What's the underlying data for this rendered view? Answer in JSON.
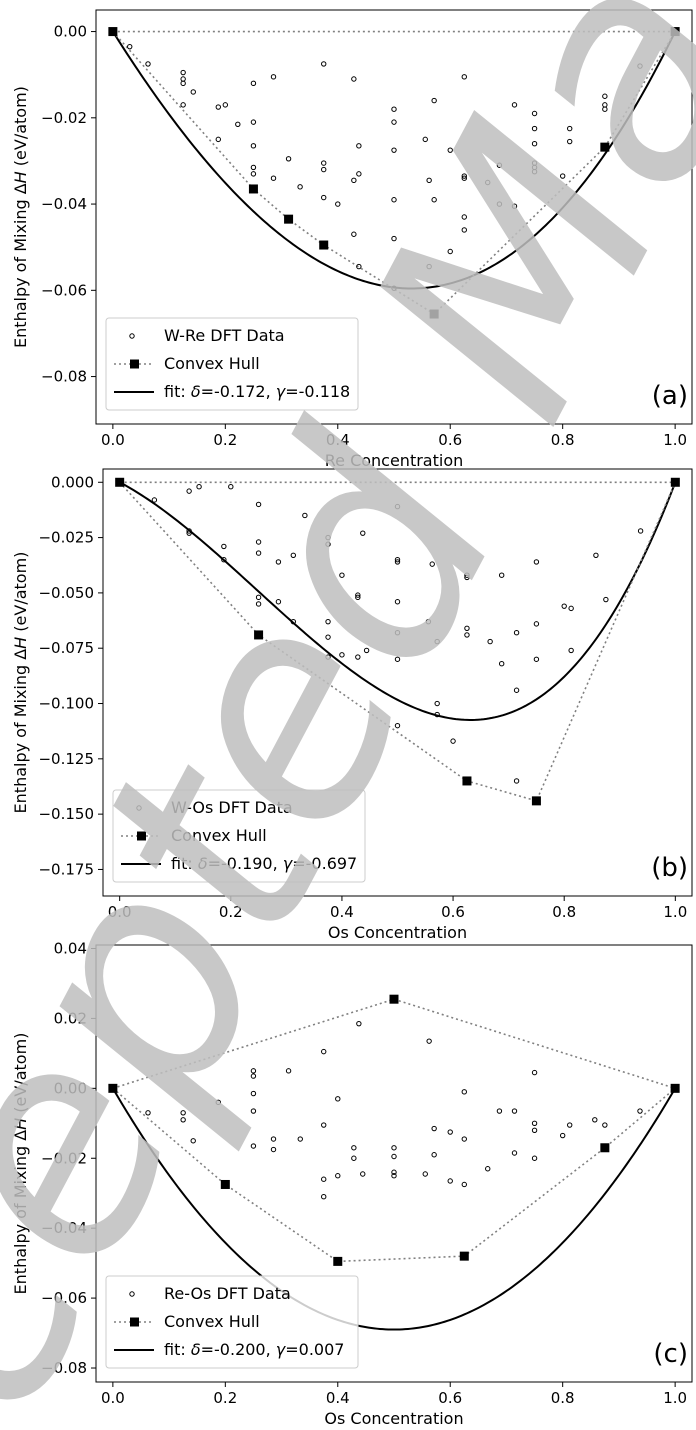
{
  "colors": {
    "hull": "#808080",
    "fit": "#000000",
    "points": "#000000",
    "watermark": "#bfbfbf"
  },
  "chart_data": [
    {
      "type": "scatter",
      "panel_label": "(a)",
      "xlabel": "Re Concentration",
      "ylabel": "Enthalpy of Mixing ΔH (eV/atom)",
      "xlim": [
        -0.03,
        1.03
      ],
      "ylim": [
        -0.091,
        0.005
      ],
      "xticks": [
        0.0,
        0.2,
        0.4,
        0.6,
        0.8,
        1.0
      ],
      "xtick_labels": [
        "0.0",
        "0.2",
        "0.4",
        "0.6",
        "0.8",
        "1.0"
      ],
      "yticks": [
        0.0,
        -0.02,
        -0.04,
        -0.06,
        -0.08
      ],
      "ytick_labels": [
        "0.00",
        "−0.02",
        "−0.04",
        "−0.06",
        "−0.08"
      ],
      "legend": [
        "W-Re DFT Data",
        "Convex Hull",
        "fit: δ=-0.172, γ=-0.118"
      ],
      "legend_position": "lower-left",
      "fit": {
        "delta": -0.172,
        "gamma": -0.118
      },
      "hull": [
        [
          0.0,
          0.0
        ],
        [
          0.25,
          -0.0365
        ],
        [
          0.3125,
          -0.0435
        ],
        [
          0.375,
          -0.0495
        ],
        [
          0.5714,
          -0.0655
        ],
        [
          0.875,
          -0.0268
        ],
        [
          1.0,
          0.0
        ]
      ],
      "dft": [
        [
          0.03,
          -0.0035
        ],
        [
          0.0625,
          -0.0075
        ],
        [
          0.125,
          -0.0095
        ],
        [
          0.125,
          -0.011
        ],
        [
          0.125,
          -0.012
        ],
        [
          0.125,
          -0.017
        ],
        [
          0.143,
          -0.014
        ],
        [
          0.1875,
          -0.0175
        ],
        [
          0.2,
          -0.017
        ],
        [
          0.1875,
          -0.025
        ],
        [
          0.25,
          -0.012
        ],
        [
          0.25,
          -0.021
        ],
        [
          0.25,
          -0.0265
        ],
        [
          0.25,
          -0.0315
        ],
        [
          0.25,
          -0.033
        ],
        [
          0.2222,
          -0.0215
        ],
        [
          0.2857,
          -0.0105
        ],
        [
          0.3125,
          -0.0295
        ],
        [
          0.2857,
          -0.034
        ],
        [
          0.333,
          -0.036
        ],
        [
          0.375,
          -0.0075
        ],
        [
          0.375,
          -0.0305
        ],
        [
          0.375,
          -0.032
        ],
        [
          0.375,
          -0.0385
        ],
        [
          0.4,
          -0.04
        ],
        [
          0.4286,
          -0.011
        ],
        [
          0.4375,
          -0.0265
        ],
        [
          0.4286,
          -0.0345
        ],
        [
          0.4375,
          -0.033
        ],
        [
          0.4286,
          -0.047
        ],
        [
          0.4375,
          -0.0545
        ],
        [
          0.5,
          -0.018
        ],
        [
          0.5,
          -0.021
        ],
        [
          0.5,
          -0.0275
        ],
        [
          0.5,
          -0.039
        ],
        [
          0.5,
          -0.048
        ],
        [
          0.5,
          -0.0595
        ],
        [
          0.5556,
          -0.025
        ],
        [
          0.5714,
          -0.016
        ],
        [
          0.5625,
          -0.0345
        ],
        [
          0.5714,
          -0.039
        ],
        [
          0.5625,
          -0.0545
        ],
        [
          0.6,
          -0.0275
        ],
        [
          0.625,
          -0.0105
        ],
        [
          0.625,
          -0.0335
        ],
        [
          0.625,
          -0.034
        ],
        [
          0.625,
          -0.043
        ],
        [
          0.625,
          -0.046
        ],
        [
          0.6,
          -0.051
        ],
        [
          0.6667,
          -0.035
        ],
        [
          0.6875,
          -0.031
        ],
        [
          0.6875,
          -0.04
        ],
        [
          0.7143,
          -0.017
        ],
        [
          0.7143,
          -0.0405
        ],
        [
          0.75,
          -0.019
        ],
        [
          0.75,
          -0.0225
        ],
        [
          0.75,
          -0.026
        ],
        [
          0.75,
          -0.0305
        ],
        [
          0.75,
          -0.0315
        ],
        [
          0.75,
          -0.0325
        ],
        [
          0.8,
          -0.0335
        ],
        [
          0.8125,
          -0.0225
        ],
        [
          0.8125,
          -0.0255
        ],
        [
          0.875,
          -0.015
        ],
        [
          0.875,
          -0.017
        ],
        [
          0.875,
          -0.018
        ],
        [
          0.9375,
          -0.008
        ]
      ]
    },
    {
      "type": "scatter",
      "panel_label": "(b)",
      "xlabel": "Os Concentration",
      "ylabel": "Enthalpy of Mixing ΔH (eV/atom)",
      "xlim": [
        -0.03,
        1.03
      ],
      "ylim": [
        -0.187,
        0.006
      ],
      "xticks": [
        0.0,
        0.2,
        0.4,
        0.6,
        0.8,
        1.0
      ],
      "xtick_labels": [
        "0.0",
        "0.2",
        "0.4",
        "0.6",
        "0.8",
        "1.0"
      ],
      "yticks": [
        0.0,
        -0.025,
        -0.05,
        -0.075,
        -0.1,
        -0.125,
        -0.15,
        -0.175
      ],
      "ytick_labels": [
        "0.000",
        "−0.025",
        "−0.050",
        "−0.075",
        "−0.100",
        "−0.125",
        "−0.150",
        "−0.175"
      ],
      "legend": [
        "W-Os DFT Data",
        "Convex Hull",
        "fit: δ=-0.190, γ=-0.697"
      ],
      "legend_position": "lower-left",
      "fit": {
        "delta": -0.19,
        "gamma": -0.697
      },
      "hull": [
        [
          0.0,
          0.0
        ],
        [
          0.25,
          -0.069
        ],
        [
          0.625,
          -0.135
        ],
        [
          0.75,
          -0.144
        ],
        [
          1.0,
          0.0
        ]
      ],
      "dft": [
        [
          0.0625,
          -0.008
        ],
        [
          0.125,
          -0.004
        ],
        [
          0.1429,
          -0.002
        ],
        [
          0.125,
          -0.022
        ],
        [
          0.125,
          -0.023
        ],
        [
          0.1875,
          -0.029
        ],
        [
          0.1875,
          -0.035
        ],
        [
          0.2,
          -0.002
        ],
        [
          0.25,
          -0.01
        ],
        [
          0.25,
          -0.027
        ],
        [
          0.25,
          -0.032
        ],
        [
          0.25,
          -0.052
        ],
        [
          0.25,
          -0.055
        ],
        [
          0.2857,
          -0.036
        ],
        [
          0.2857,
          -0.054
        ],
        [
          0.3125,
          -0.033
        ],
        [
          0.3125,
          -0.063
        ],
        [
          0.3333,
          -0.015
        ],
        [
          0.375,
          -0.025
        ],
        [
          0.375,
          -0.028
        ],
        [
          0.375,
          -0.063
        ],
        [
          0.375,
          -0.07
        ],
        [
          0.375,
          -0.079
        ],
        [
          0.4,
          -0.042
        ],
        [
          0.4,
          -0.078
        ],
        [
          0.4286,
          -0.051
        ],
        [
          0.4286,
          -0.052
        ],
        [
          0.4286,
          -0.079
        ],
        [
          0.4375,
          -0.023
        ],
        [
          0.4444,
          -0.076
        ],
        [
          0.5,
          -0.011
        ],
        [
          0.5,
          -0.035
        ],
        [
          0.5,
          -0.036
        ],
        [
          0.5,
          -0.054
        ],
        [
          0.5,
          -0.068
        ],
        [
          0.5,
          -0.08
        ],
        [
          0.5,
          -0.11
        ],
        [
          0.5556,
          -0.063
        ],
        [
          0.5625,
          -0.037
        ],
        [
          0.5714,
          -0.1
        ],
        [
          0.5714,
          -0.105
        ],
        [
          0.5714,
          -0.072
        ],
        [
          0.6,
          -0.117
        ],
        [
          0.625,
          -0.042
        ],
        [
          0.625,
          -0.043
        ],
        [
          0.625,
          -0.066
        ],
        [
          0.625,
          -0.069
        ],
        [
          0.6667,
          -0.072
        ],
        [
          0.6875,
          -0.082
        ],
        [
          0.6875,
          -0.042
        ],
        [
          0.7143,
          -0.068
        ],
        [
          0.7143,
          -0.094
        ],
        [
          0.7143,
          -0.135
        ],
        [
          0.75,
          -0.036
        ],
        [
          0.75,
          -0.064
        ],
        [
          0.75,
          -0.08
        ],
        [
          0.8,
          -0.056
        ],
        [
          0.8125,
          -0.057
        ],
        [
          0.8125,
          -0.076
        ],
        [
          0.8571,
          -0.033
        ],
        [
          0.875,
          -0.053
        ],
        [
          0.9375,
          -0.022
        ]
      ]
    },
    {
      "type": "scatter",
      "panel_label": "(c)",
      "xlabel": "Os Concentration",
      "ylabel": "Enthalpy of Mixing ΔH (eV/atom)",
      "xlim": [
        -0.03,
        1.03
      ],
      "ylim": [
        -0.084,
        0.041
      ],
      "xticks": [
        0.0,
        0.2,
        0.4,
        0.6,
        0.8,
        1.0
      ],
      "xtick_labels": [
        "0.0",
        "0.2",
        "0.4",
        "0.6",
        "0.8",
        "1.0"
      ],
      "yticks": [
        0.04,
        0.02,
        0.0,
        -0.02,
        -0.04,
        -0.06,
        -0.08
      ],
      "ytick_labels": [
        "0.04",
        "0.02",
        "0.00",
        "−0.02",
        "−0.04",
        "−0.06",
        "−0.08"
      ],
      "legend": [
        "Re-Os DFT Data",
        "Convex Hull",
        "fit: δ=-0.200, γ=0.007"
      ],
      "legend_position": "lower-left",
      "fit": {
        "delta": -0.2,
        "gamma": 0.007
      },
      "hull_upper": [
        [
          0.0,
          0.0
        ],
        [
          0.5,
          0.0255
        ],
        [
          1.0,
          0.0
        ]
      ],
      "hull": [
        [
          0.0,
          0.0
        ],
        [
          0.2,
          -0.0275
        ],
        [
          0.4,
          -0.0495
        ],
        [
          0.625,
          -0.048
        ],
        [
          0.875,
          -0.017
        ],
        [
          1.0,
          0.0
        ]
      ],
      "dft": [
        [
          0.0625,
          -0.007
        ],
        [
          0.125,
          -0.007
        ],
        [
          0.125,
          -0.009
        ],
        [
          0.1429,
          -0.015
        ],
        [
          0.1875,
          -0.004
        ],
        [
          0.25,
          0.005
        ],
        [
          0.25,
          0.0035
        ],
        [
          0.25,
          -0.0015
        ],
        [
          0.25,
          -0.0065
        ],
        [
          0.25,
          -0.0165
        ],
        [
          0.2857,
          -0.0145
        ],
        [
          0.2857,
          -0.0175
        ],
        [
          0.3125,
          0.005
        ],
        [
          0.3333,
          -0.0145
        ],
        [
          0.375,
          0.0105
        ],
        [
          0.375,
          -0.0105
        ],
        [
          0.375,
          -0.026
        ],
        [
          0.375,
          -0.031
        ],
        [
          0.4,
          -0.003
        ],
        [
          0.4,
          -0.025
        ],
        [
          0.4286,
          -0.017
        ],
        [
          0.4286,
          -0.02
        ],
        [
          0.4375,
          0.0185
        ],
        [
          0.4444,
          -0.0245
        ],
        [
          0.5,
          -0.017
        ],
        [
          0.5,
          -0.0195
        ],
        [
          0.5,
          -0.024
        ],
        [
          0.5,
          -0.025
        ],
        [
          0.5556,
          -0.0245
        ],
        [
          0.5625,
          0.0135
        ],
        [
          0.5714,
          -0.0115
        ],
        [
          0.5714,
          -0.019
        ],
        [
          0.6,
          -0.0125
        ],
        [
          0.6,
          -0.0265
        ],
        [
          0.625,
          -0.001
        ],
        [
          0.625,
          -0.0145
        ],
        [
          0.625,
          -0.0275
        ],
        [
          0.6667,
          -0.023
        ],
        [
          0.6875,
          -0.0065
        ],
        [
          0.7143,
          -0.0065
        ],
        [
          0.7143,
          -0.0185
        ],
        [
          0.75,
          0.0045
        ],
        [
          0.75,
          -0.01
        ],
        [
          0.75,
          -0.012
        ],
        [
          0.75,
          -0.02
        ],
        [
          0.8,
          -0.0135
        ],
        [
          0.8125,
          -0.0105
        ],
        [
          0.8571,
          -0.009
        ],
        [
          0.875,
          -0.0105
        ],
        [
          0.9375,
          -0.0065
        ]
      ]
    }
  ]
}
